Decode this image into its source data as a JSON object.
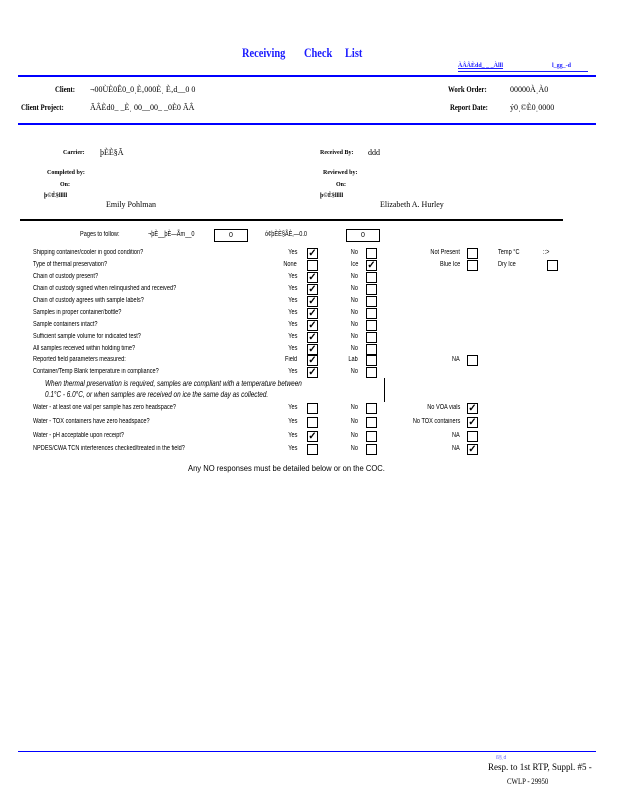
{
  "header": {
    "title_words": [
      "Receiving",
      "Check",
      "List"
    ],
    "top_right_code": "ÀÂÂÈdd_ _ _Àlll",
    "top_right_code2": "l_gg_-d",
    "client_label": "Client:",
    "client_value": "¬00ÙÈ0Ê0_0ˌÈ‚000Èˌ È‚d__0  0",
    "project_label": "Client   Project:",
    "project_value": "ÃÂÈd0_ _Èˌ 00__00_ _0È0 ÃÂ",
    "work_order_label": "Work   Order:",
    "work_order_value": "00000ÀˌÀ0",
    "report_date_label": "Report   Date:",
    "report_date_value": "ý0ˌ©È0ˌ0000"
  },
  "signoff": {
    "carrier_label": "Carrier:",
    "carrier_value": "þÈÈ§Ã",
    "received_by_label": "Received   By:",
    "received_by_value": "ddd",
    "completed_by_label": "Completed   by:",
    "completed_on_label": "On:",
    "completed_on_value": "þ©Ê§lllll",
    "completed_name": "Emily   Pohlman",
    "reviewed_by_label": "Reviewed   by:",
    "reviewed_on_label": "On:",
    "reviewed_on_value": "þ©Ê§lllll",
    "reviewed_name": "Elizabeth   A.  Hurley"
  },
  "counts": {
    "label": "Pages to follow:",
    "field1_label": "¬þÈ__þÈ—Ãm__0",
    "field1_value": "0",
    "field2_label": "ó¢þÈÈ§ÃÈ‚—0.0",
    "field2_value": "0"
  },
  "rows": [
    {
      "q": "Shipping   container/cooler in good condition?",
      "a": "Yes",
      "ac": true,
      "b": "No",
      "bc": false,
      "c": "Not  Present",
      "cc": false,
      "d": "Temp  °C",
      "dv": "::>"
    },
    {
      "q": "Type  of  thermal  preservation?",
      "a": "None",
      "ac": false,
      "b": "Ice",
      "bc": true,
      "c": "Blue  Ice",
      "cc": false,
      "d": "Dry Ice",
      "dc": false
    },
    {
      "q": "Chain  of  custody present?",
      "a": "Yes",
      "ac": true,
      "b": "No",
      "bc": false
    },
    {
      "q": "Chain  of  custody signed when relinquished and received?",
      "a": "Yes",
      "ac": true,
      "b": "No",
      "bc": false
    },
    {
      "q": "Chain  of  custody agrees with sample labels?",
      "a": "Yes",
      "ac": true,
      "b": "No",
      "bc": false
    },
    {
      "q": "Samples  in  proper  container/bottle?",
      "a": "Yes",
      "ac": true,
      "b": "No",
      "bc": false
    },
    {
      "q": "Sample  containers  intact?",
      "a": "Yes",
      "ac": true,
      "b": "No",
      "bc": false
    },
    {
      "q": "Sufficient  sample  volume for indicated  test?",
      "a": "Yes",
      "ac": true,
      "b": "No",
      "bc": false
    },
    {
      "q": "All  samples  received  within  holding  time?",
      "a": "Yes",
      "ac": true,
      "b": "No",
      "bc": false
    },
    {
      "q": "Reported  field  parameters measured:",
      "a": "Field",
      "ac": true,
      "b": "Lab",
      "bc": false,
      "c": "NA",
      "cc": false
    },
    {
      "q": "Container/Temp  Blank  temperature  in  compliance?",
      "a": "Yes",
      "ac": true,
      "b": "No",
      "bc": false
    }
  ],
  "note": [
    "When  thermal preservation is required, samples are  compliant  with a temperature  between",
    "0.1°C - 6.0°C,  or when  samples  are received  on ice  the same  day as collected."
  ],
  "water_rows": [
    {
      "q": "Water  - at least  one vial per sample has  zero  headspace?",
      "a": "Yes",
      "ac": false,
      "b": "No",
      "bc": false,
      "c": "No  VOA  vials",
      "cc": true
    },
    {
      "q": "Water  - TOX  containers have  zero  headspace?",
      "a": "Yes",
      "ac": false,
      "b": "No",
      "bc": false,
      "c": "No  TOX  containers",
      "cc": true
    },
    {
      "q": "Water  - pH  acceptable  upon  receipt?",
      "a": "Yes",
      "ac": true,
      "b": "No",
      "bc": false,
      "c": "NA",
      "cc": false
    },
    {
      "q": "NPDES/CWA  TCN interferences  checked/treated  in  the  field?",
      "a": "Yes",
      "ac": false,
      "b": "No",
      "bc": false,
      "c": "NA",
      "cc": true
    }
  ],
  "footnote": "Any NO responses must be detailed below or on the COC.",
  "footer": {
    "stamp": "Resp. to 1st RTP, Suppl. #5 -",
    "doc_id": "CWLP - 29950",
    "mark": "ß§ˌd"
  },
  "colors": {
    "accent": "#0000ff"
  }
}
